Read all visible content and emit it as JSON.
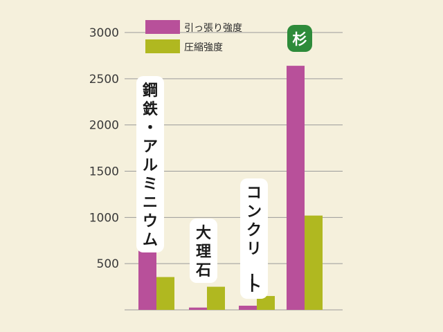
{
  "chart_data": {
    "type": "bar",
    "categories": [
      "鋼鉄・アルミニウム",
      "大理石",
      "コンクリート",
      "杉"
    ],
    "series": [
      {
        "name": "引っ張り強度",
        "color": "#b8509a",
        "values": [
          640,
          25,
          45,
          2640
        ]
      },
      {
        "name": "圧縮強度",
        "color": "#b0b820",
        "values": [
          355,
          250,
          150,
          1020
        ]
      }
    ],
    "title": "",
    "xlabel": "",
    "ylabel": "",
    "ylim": [
      0,
      3000
    ],
    "yticks": [
      "500",
      "1000",
      "1500",
      "2000",
      "2500",
      "3000"
    ],
    "grid": true,
    "legend": "top-left",
    "highlight_color": "#2e8b3a",
    "background": "#f5f0dc"
  }
}
